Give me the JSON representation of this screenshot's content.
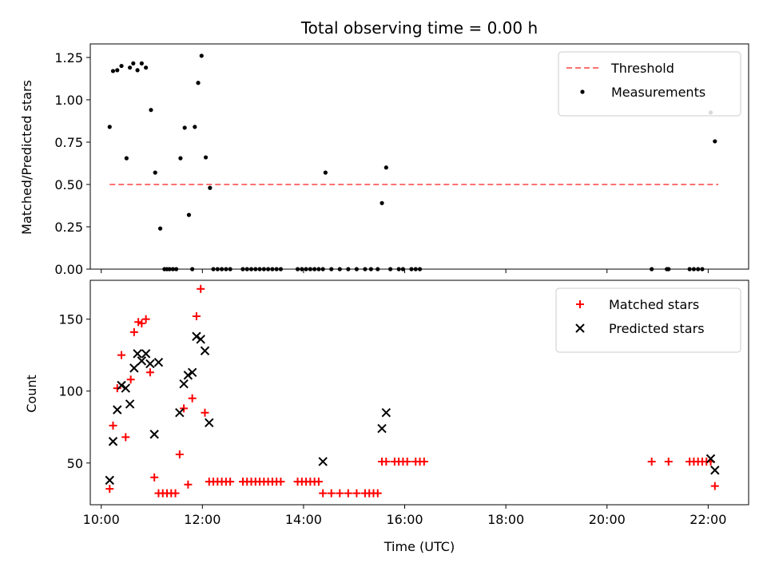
{
  "chart_data": [
    {
      "type": "scatter",
      "title": "Total observing time = 0.00 h",
      "xlabel": "",
      "ylabel": "Matched/Predicted stars",
      "xlim": [
        "09:47",
        "22:48"
      ],
      "ylim": [
        0,
        1.33
      ],
      "yticks": [
        "0.00",
        "0.25",
        "0.50",
        "0.75",
        "1.00",
        "1.25"
      ],
      "yticks_values": [
        0,
        0.25,
        0.5,
        0.75,
        1.0,
        1.25
      ],
      "xticks": [
        "10:00",
        "12:00",
        "14:00",
        "16:00",
        "18:00",
        "20:00",
        "22:00"
      ],
      "show_xtick_labels": false,
      "legend_location": "top-right",
      "threshold": {
        "name": "Threshold",
        "color": "#ff7070",
        "style": "dashed",
        "value": 0.5,
        "x_range": [
          "10:10",
          "22:12"
        ]
      },
      "series": [
        {
          "name": "Measurements",
          "color": "#000000",
          "marker": "dot",
          "points": [
            [
              "10:10",
              0.84
            ],
            [
              "10:14",
              1.17
            ],
            [
              "10:19",
              1.175
            ],
            [
              "10:24",
              1.2
            ],
            [
              "10:30",
              0.655
            ],
            [
              "10:34",
              1.19
            ],
            [
              "10:38",
              1.215
            ],
            [
              "10:43",
              1.175
            ],
            [
              "10:48",
              1.215
            ],
            [
              "10:53",
              1.19
            ],
            [
              "10:59",
              0.94
            ],
            [
              "11:04",
              0.57
            ],
            [
              "11:10",
              0.24
            ],
            [
              "11:15",
              0
            ],
            [
              "11:18",
              0
            ],
            [
              "11:21",
              0
            ],
            [
              "11:25",
              0
            ],
            [
              "11:29",
              0
            ],
            [
              "11:34",
              0.655
            ],
            [
              "11:39",
              0.835
            ],
            [
              "11:44",
              0.32
            ],
            [
              "11:48",
              0
            ],
            [
              "11:51",
              0.84
            ],
            [
              "11:55",
              1.1
            ],
            [
              "11:59",
              1.26
            ],
            [
              "12:04",
              0.66
            ],
            [
              "12:09",
              0.48
            ],
            [
              "12:13",
              0
            ],
            [
              "12:18",
              0
            ],
            [
              "12:23",
              0
            ],
            [
              "12:28",
              0
            ],
            [
              "12:33",
              0
            ],
            [
              "12:48",
              0
            ],
            [
              "12:53",
              0
            ],
            [
              "12:58",
              0
            ],
            [
              "13:03",
              0
            ],
            [
              "13:08",
              0
            ],
            [
              "13:13",
              0
            ],
            [
              "13:18",
              0
            ],
            [
              "13:23",
              0
            ],
            [
              "13:28",
              0
            ],
            [
              "13:33",
              0
            ],
            [
              "13:53",
              0
            ],
            [
              "13:58",
              0
            ],
            [
              "14:03",
              0
            ],
            [
              "14:08",
              0
            ],
            [
              "14:13",
              0
            ],
            [
              "14:18",
              0
            ],
            [
              "14:23",
              0
            ],
            [
              "14:26",
              0.57
            ],
            [
              "14:33",
              0
            ],
            [
              "14:43",
              0
            ],
            [
              "14:53",
              0
            ],
            [
              "15:03",
              0
            ],
            [
              "15:13",
              0
            ],
            [
              "15:20",
              0
            ],
            [
              "15:28",
              0
            ],
            [
              "15:33",
              0.39
            ],
            [
              "15:38",
              0.6
            ],
            [
              "15:43",
              0
            ],
            [
              "15:53",
              0
            ],
            [
              "15:58",
              0
            ],
            [
              "16:08",
              0
            ],
            [
              "16:13",
              0
            ],
            [
              "16:18",
              0
            ],
            [
              "20:53",
              0
            ],
            [
              "21:11",
              0
            ],
            [
              "21:13",
              0
            ],
            [
              "21:38",
              0
            ],
            [
              "21:43",
              0
            ],
            [
              "21:48",
              0
            ],
            [
              "21:53",
              0
            ],
            [
              "22:03",
              0.925
            ],
            [
              "22:08",
              0.755
            ]
          ]
        }
      ]
    },
    {
      "type": "scatter",
      "title": "",
      "xlabel": "Time (UTC)",
      "ylabel": "Count",
      "xlim": [
        "09:47",
        "22:48"
      ],
      "ylim": [
        21,
        177
      ],
      "yticks": [
        "50",
        "100",
        "150"
      ],
      "yticks_values": [
        50,
        100,
        150
      ],
      "xticks": [
        "10:00",
        "12:00",
        "14:00",
        "16:00",
        "18:00",
        "20:00",
        "22:00"
      ],
      "show_xtick_labels": true,
      "legend_location": "top-right",
      "series": [
        {
          "name": "Matched stars",
          "color": "#ff0000",
          "marker": "plus",
          "points": [
            [
              "10:10",
              32
            ],
            [
              "10:14",
              76
            ],
            [
              "10:19",
              102
            ],
            [
              "10:24",
              125
            ],
            [
              "10:29",
              68
            ],
            [
              "10:35",
              108
            ],
            [
              "10:39",
              141
            ],
            [
              "10:44",
              148
            ],
            [
              "10:48",
              147
            ],
            [
              "10:53",
              150
            ],
            [
              "10:58",
              113
            ],
            [
              "11:03",
              40
            ],
            [
              "11:08",
              29
            ],
            [
              "11:13",
              29
            ],
            [
              "11:18",
              29
            ],
            [
              "11:23",
              29
            ],
            [
              "11:28",
              29
            ],
            [
              "11:33",
              56
            ],
            [
              "11:38",
              88
            ],
            [
              "11:43",
              35
            ],
            [
              "11:48",
              95
            ],
            [
              "11:53",
              152
            ],
            [
              "11:58",
              171
            ],
            [
              "12:03",
              85
            ],
            [
              "12:08",
              37
            ],
            [
              "12:13",
              37
            ],
            [
              "12:18",
              37
            ],
            [
              "12:23",
              37
            ],
            [
              "12:28",
              37
            ],
            [
              "12:33",
              37
            ],
            [
              "12:48",
              37
            ],
            [
              "12:53",
              37
            ],
            [
              "12:58",
              37
            ],
            [
              "13:03",
              37
            ],
            [
              "13:08",
              37
            ],
            [
              "13:13",
              37
            ],
            [
              "13:18",
              37
            ],
            [
              "13:23",
              37
            ],
            [
              "13:28",
              37
            ],
            [
              "13:33",
              37
            ],
            [
              "13:53",
              37
            ],
            [
              "13:58",
              37
            ],
            [
              "14:03",
              37
            ],
            [
              "14:08",
              37
            ],
            [
              "14:13",
              37
            ],
            [
              "14:18",
              37
            ],
            [
              "14:23",
              29
            ],
            [
              "14:33",
              29
            ],
            [
              "14:43",
              29
            ],
            [
              "14:53",
              29
            ],
            [
              "15:03",
              29
            ],
            [
              "15:13",
              29
            ],
            [
              "15:18",
              29
            ],
            [
              "15:23",
              29
            ],
            [
              "15:28",
              29
            ],
            [
              "15:33",
              51
            ],
            [
              "15:38",
              51
            ],
            [
              "15:48",
              51
            ],
            [
              "15:53",
              51
            ],
            [
              "15:58",
              51
            ],
            [
              "16:03",
              51
            ],
            [
              "16:13",
              51
            ],
            [
              "16:18",
              51
            ],
            [
              "16:23",
              51
            ],
            [
              "20:53",
              51
            ],
            [
              "21:13",
              51
            ],
            [
              "21:38",
              51
            ],
            [
              "21:43",
              51
            ],
            [
              "21:48",
              51
            ],
            [
              "21:53",
              51
            ],
            [
              "21:58",
              51
            ],
            [
              "22:03",
              51
            ],
            [
              "22:08",
              34
            ]
          ]
        },
        {
          "name": "Predicted stars",
          "color": "#000000",
          "marker": "x",
          "points": [
            [
              "10:10",
              38
            ],
            [
              "10:14",
              65
            ],
            [
              "10:19",
              87
            ],
            [
              "10:24",
              104
            ],
            [
              "10:29",
              102
            ],
            [
              "10:34",
              91
            ],
            [
              "10:39",
              116
            ],
            [
              "10:43",
              126
            ],
            [
              "10:48",
              121
            ],
            [
              "10:53",
              126
            ],
            [
              "10:58",
              119
            ],
            [
              "11:03",
              70
            ],
            [
              "11:08",
              120
            ],
            [
              "11:33",
              85
            ],
            [
              "11:38",
              105
            ],
            [
              "11:43",
              111
            ],
            [
              "11:48",
              113
            ],
            [
              "11:53",
              138
            ],
            [
              "11:58",
              136
            ],
            [
              "12:03",
              128
            ],
            [
              "12:08",
              78
            ],
            [
              "14:23",
              51
            ],
            [
              "15:33",
              74
            ],
            [
              "15:38",
              85
            ],
            [
              "22:03",
              53
            ],
            [
              "22:08",
              45
            ]
          ]
        }
      ]
    }
  ]
}
